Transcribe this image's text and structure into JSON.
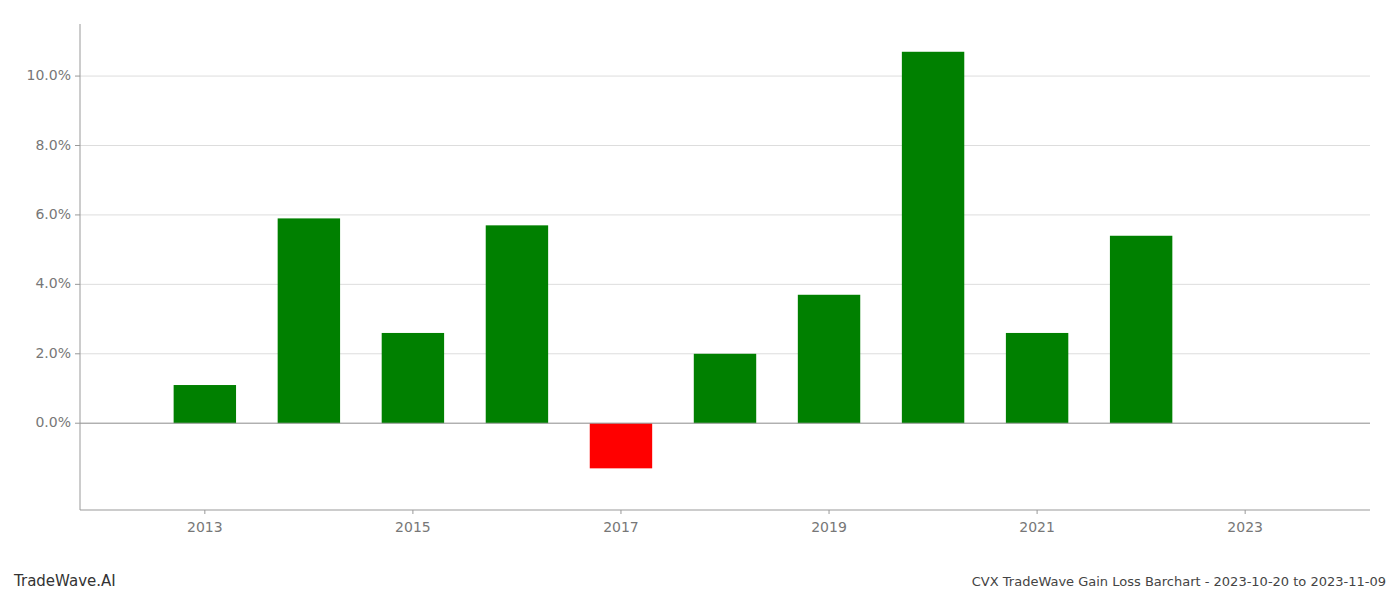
{
  "chart_data": {
    "type": "bar",
    "title": "CVX TradeWave Gain Loss Barchart - 2023-10-20 to 2023-11-09",
    "annotations": [
      "TradeWave.AI"
    ],
    "x": [
      2013,
      2014,
      2015,
      2016,
      2017,
      2018,
      2019,
      2020,
      2021,
      2022,
      2023
    ],
    "values": [
      0.011,
      0.059,
      0.026,
      0.057,
      -0.013,
      0.02,
      0.037,
      0.107,
      0.026,
      0.054,
      null
    ],
    "colors": [
      "#008000",
      "#008000",
      "#008000",
      "#008000",
      "#ff0000",
      "#008000",
      "#008000",
      "#008000",
      "#008000",
      "#008000",
      null
    ],
    "xlim": [
      2011.8,
      2024.2
    ],
    "xticks": [
      2013,
      2015,
      2017,
      2019,
      2021,
      2023
    ],
    "ylim": [
      -0.025,
      0.115
    ],
    "yticks": [
      {
        "value": 0.0,
        "label": "0.0%"
      },
      {
        "value": 0.02,
        "label": "2.0%"
      },
      {
        "value": 0.04,
        "label": "4.0%"
      },
      {
        "value": 0.06,
        "label": "6.0%"
      },
      {
        "value": 0.08,
        "label": "8.0%"
      },
      {
        "value": 0.1,
        "label": "10.0%"
      }
    ],
    "grid": true
  }
}
